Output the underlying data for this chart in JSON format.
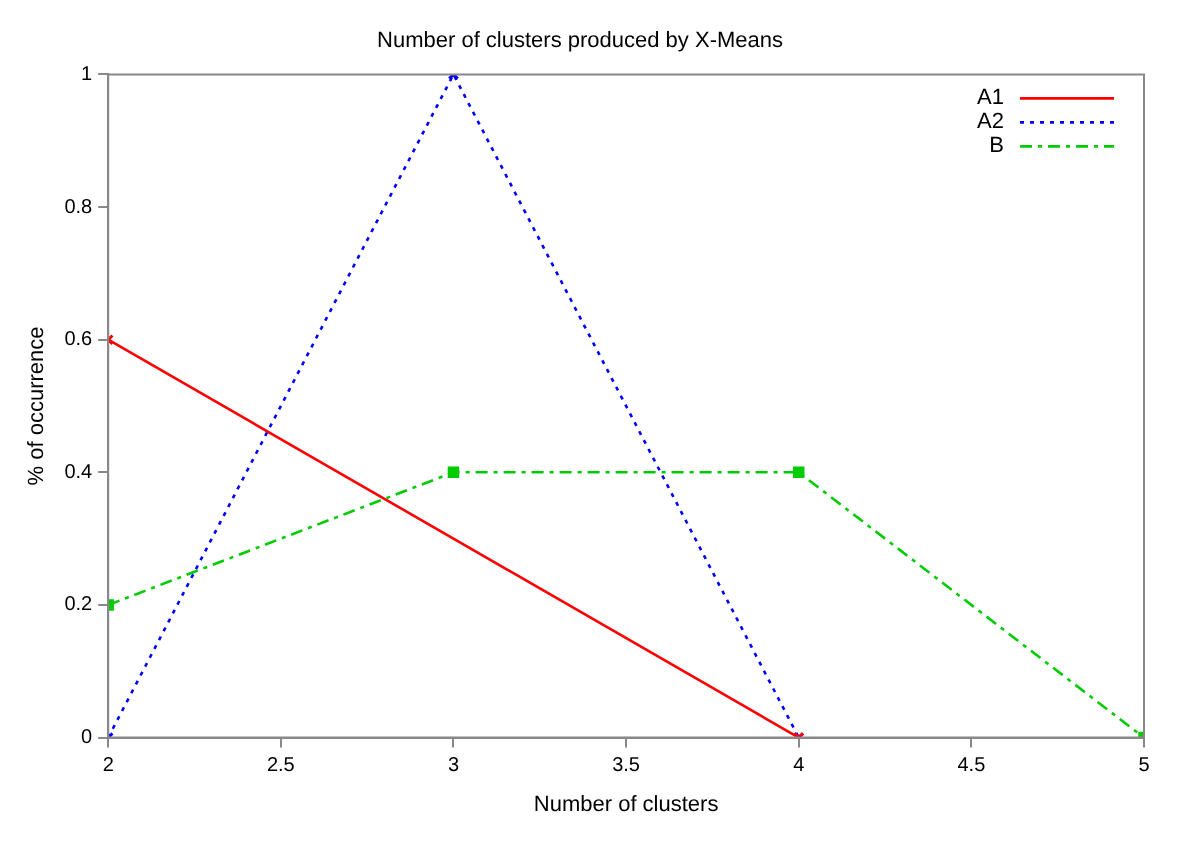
{
  "chart_data": {
    "type": "line",
    "title": "Number of clusters produced by X-Means",
    "xlabel": "Number of clusters",
    "ylabel": "% of occurrence",
    "series": [
      {
        "name": "A1",
        "color": "#ff0000",
        "x": [
          2,
          4
        ],
        "values": [
          0.6,
          0
        ],
        "line_style": "solid",
        "marker": "cross"
      },
      {
        "name": "A2",
        "color": "#0000ff",
        "x": [
          2,
          3,
          4
        ],
        "values": [
          0,
          1,
          0
        ],
        "line_style": "dotted",
        "marker": "cross"
      },
      {
        "name": "B",
        "color": "#00cc00",
        "x": [
          2,
          3,
          4,
          5
        ],
        "values": [
          0.2,
          0.4,
          0.4,
          0
        ],
        "line_style": "dashed",
        "marker": "square"
      }
    ],
    "xlim": [
      2,
      5
    ],
    "xticks": [
      2,
      2.5,
      3,
      3.5,
      4,
      4.5,
      5
    ],
    "ylim": [
      0,
      1
    ],
    "yticks": [
      0,
      0.2,
      0.4,
      0.6,
      0.8,
      1
    ],
    "grid": false,
    "legend": "top right"
  }
}
